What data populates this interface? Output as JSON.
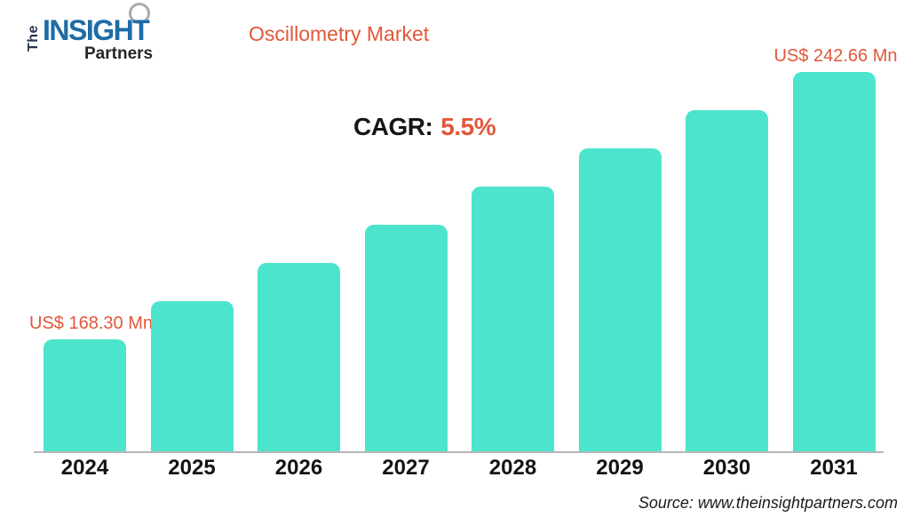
{
  "logo": {
    "the": "The",
    "insight": "INSIGHT",
    "partners": "Partners"
  },
  "header": {
    "title": "Oscillometry Market",
    "cagr_label": "CAGR:",
    "cagr_value": "5.5%"
  },
  "footer": {
    "source": "Source: www.theinsightpartners.com"
  },
  "colors": {
    "bar": "#4DE4CD",
    "accent": "#E2573A",
    "axis_line": "#B6B6B6",
    "logo_blue": "#1D6CA6",
    "logo_navy": "#253250",
    "text": "#141414"
  },
  "chart_data": {
    "type": "bar",
    "title": "Oscillometry Market",
    "categories": [
      "2024",
      "2025",
      "2026",
      "2027",
      "2028",
      "2029",
      "2030",
      "2031"
    ],
    "values": [
      168.3,
      178.92,
      189.55,
      200.17,
      210.79,
      221.41,
      232.04,
      242.66
    ],
    "values_note": "Only first and last bars carry data labels; intermediate values estimated from linear bar-height progression at CAGR 5.5%",
    "unit": "US$ Mn",
    "cagr": "5.5%",
    "point_labels": [
      {
        "index": 0,
        "text": "US$ 168.30 Mn",
        "side": "left"
      },
      {
        "index": 7,
        "text": "US$ 242.66 Mn",
        "side": "right"
      }
    ],
    "xlabel": "",
    "ylabel": "",
    "y_axis_shown": false,
    "gridlines": false,
    "legend": false,
    "baseline_axis_line": true
  }
}
